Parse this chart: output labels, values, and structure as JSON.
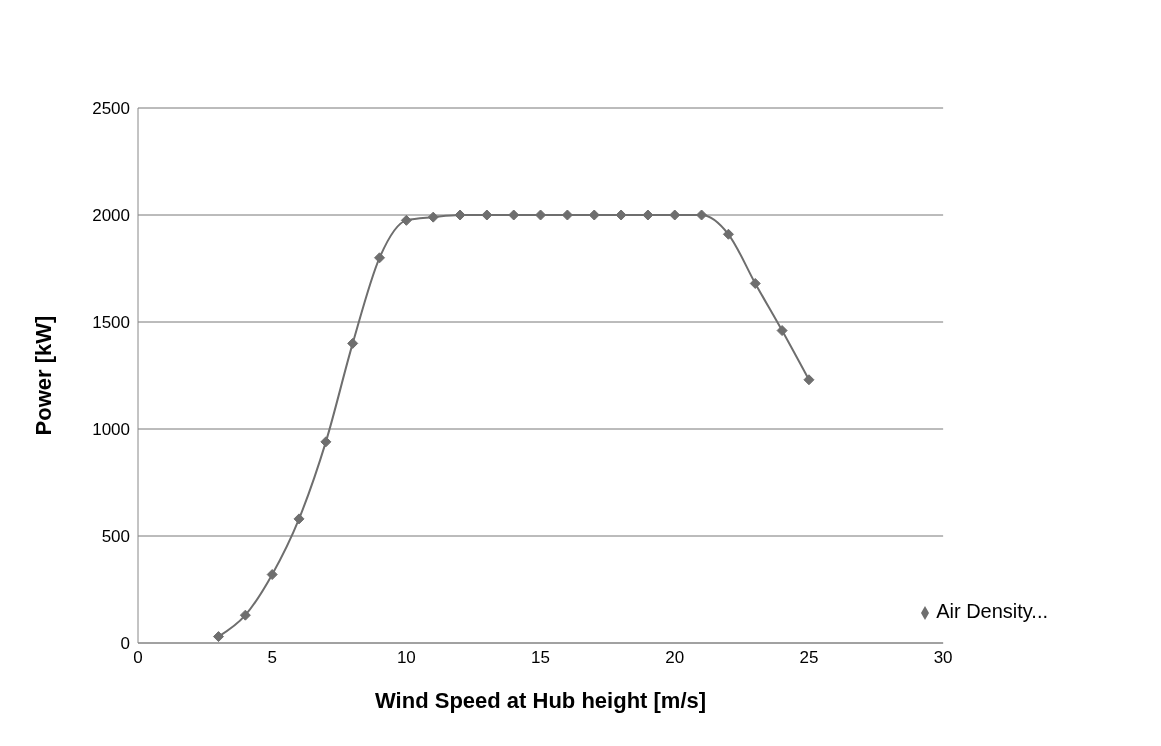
{
  "chart_data": {
    "type": "line",
    "xlabel": "Wind Speed at Hub height [m/s]",
    "ylabel": "Power [kW]",
    "x": [
      3,
      4,
      5,
      6,
      7,
      8,
      9,
      10,
      11,
      12,
      13,
      14,
      15,
      16,
      17,
      18,
      19,
      20,
      21,
      22,
      23,
      24,
      25
    ],
    "series": [
      {
        "name": "Air Density...",
        "color": "#6e6e6e",
        "values": [
          30,
          130,
          320,
          580,
          940,
          1400,
          1800,
          1975,
          1990,
          2000,
          2000,
          2000,
          2000,
          2000,
          2000,
          2000,
          2000,
          2000,
          2000,
          1910,
          1680,
          1460,
          1230
        ]
      }
    ],
    "xlim": [
      0,
      30
    ],
    "xticks": [
      0,
      5,
      10,
      15,
      20,
      25,
      30
    ],
    "ylim": [
      0,
      2500
    ],
    "yticks": [
      0,
      500,
      1000,
      1500,
      2000,
      2500
    ],
    "grid": "y",
    "legend": "bottom right",
    "marker": "diamond",
    "line_style": "solid"
  }
}
